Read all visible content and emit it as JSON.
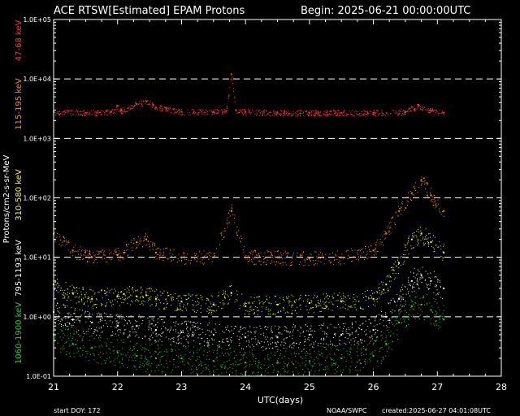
{
  "chart_data": {
    "type": "scatter",
    "title": "ACE RTSW[Estimated] EPAM Protons",
    "begin_label": "Begin: 2025-06-21 00:00:00UTC",
    "xlabel": "UTC(days)",
    "ylabel": "Protons/cm2-s-sr-MeV",
    "x_scale": "linear",
    "y_scale": "log",
    "xlim": [
      21,
      28
    ],
    "ylim": [
      0.1,
      100000
    ],
    "x_ticks": [
      21,
      22,
      23,
      24,
      25,
      26,
      27,
      28
    ],
    "x_tick_labels": [
      "21",
      "22",
      "23",
      "24",
      "25",
      "26",
      "27",
      "28"
    ],
    "y_ticks": [
      0.1,
      1,
      10,
      100,
      1000,
      10000,
      100000
    ],
    "y_tick_labels": [
      "1.0E-01",
      "1.0E+00",
      "1.0E+01",
      "1.0E+02",
      "1.0E+03",
      "1.0E+04",
      "1.0E+05"
    ],
    "dashed_gridlines_at": [
      1,
      10,
      100,
      1000,
      10000
    ],
    "footer_left": "start DOY:  172",
    "footer_center": "NOAA/SWPC",
    "footer_right": "created:2025-06-27 04:01:08UTC",
    "series": [
      {
        "name": "47-68 keV",
        "color": "#ff3a2a",
        "x": [
          21.0,
          21.5,
          21.9,
          22.0,
          22.05,
          22.3,
          22.45,
          22.6,
          23.0,
          23.5,
          23.7,
          23.78,
          23.85,
          24.0,
          24.5,
          25.0,
          25.5,
          26.0,
          26.5,
          26.7,
          26.9,
          27.1
        ],
        "y": [
          2800,
          2700,
          2800,
          3500,
          2900,
          3800,
          4200,
          3300,
          2800,
          2800,
          2900,
          12000,
          3000,
          2800,
          2700,
          2700,
          2700,
          2700,
          2800,
          3500,
          2900,
          2700
        ]
      },
      {
        "name": "115-195 keV",
        "color": "#ff8c2a",
        "x": [
          21.0,
          21.3,
          21.6,
          22.0,
          22.1,
          22.3,
          22.45,
          22.6,
          23.0,
          23.5,
          23.78,
          24.0,
          24.5,
          25.0,
          25.5,
          26.0,
          26.2,
          26.4,
          26.6,
          26.75,
          26.9,
          27.1
        ],
        "y": [
          25,
          13,
          10,
          11,
          12,
          18,
          20,
          12,
          10,
          10,
          60,
          10,
          10,
          9.5,
          10,
          13,
          25,
          60,
          120,
          200,
          110,
          60
        ]
      },
      {
        "name": "310-580 keV",
        "color": "#ffff3a",
        "x": [
          21.0,
          21.3,
          21.6,
          22.0,
          22.1,
          22.3,
          22.45,
          22.6,
          23.0,
          23.5,
          23.78,
          24.0,
          24.5,
          25.0,
          25.5,
          26.0,
          26.2,
          26.4,
          26.6,
          26.75,
          26.9,
          27.1
        ],
        "y": [
          3.5,
          2.5,
          2.0,
          2.2,
          2.4,
          2.2,
          2.3,
          2.0,
          1.8,
          1.6,
          2.5,
          1.5,
          1.6,
          1.7,
          1.8,
          2.0,
          3.5,
          8,
          20,
          25,
          18,
          12
        ]
      },
      {
        "name": "795-1193 keV",
        "color": "#ffffff",
        "x": [
          21.0,
          21.3,
          21.6,
          22.0,
          22.3,
          22.6,
          23.0,
          23.5,
          24.0,
          24.5,
          25.0,
          25.5,
          26.0,
          26.2,
          26.4,
          26.6,
          26.75,
          26.9,
          27.1
        ],
        "y": [
          1.2,
          0.9,
          0.8,
          0.7,
          0.7,
          0.6,
          0.55,
          0.5,
          0.45,
          0.45,
          0.5,
          0.5,
          0.6,
          1.0,
          2.0,
          4.0,
          5.0,
          4.0,
          3.0
        ]
      },
      {
        "name": "1060-1900 keV",
        "color": "#33cc33",
        "x": [
          21.0,
          21.3,
          21.6,
          22.0,
          22.3,
          22.6,
          23.0,
          23.5,
          24.0,
          24.5,
          25.0,
          25.5,
          26.0,
          26.2,
          26.4,
          26.6,
          26.75,
          26.9,
          27.1
        ],
        "y": [
          0.5,
          0.35,
          0.3,
          0.25,
          0.22,
          0.2,
          0.2,
          0.18,
          0.17,
          0.17,
          0.18,
          0.2,
          0.22,
          0.35,
          0.8,
          1.5,
          1.6,
          1.3,
          0.9
        ]
      }
    ]
  }
}
